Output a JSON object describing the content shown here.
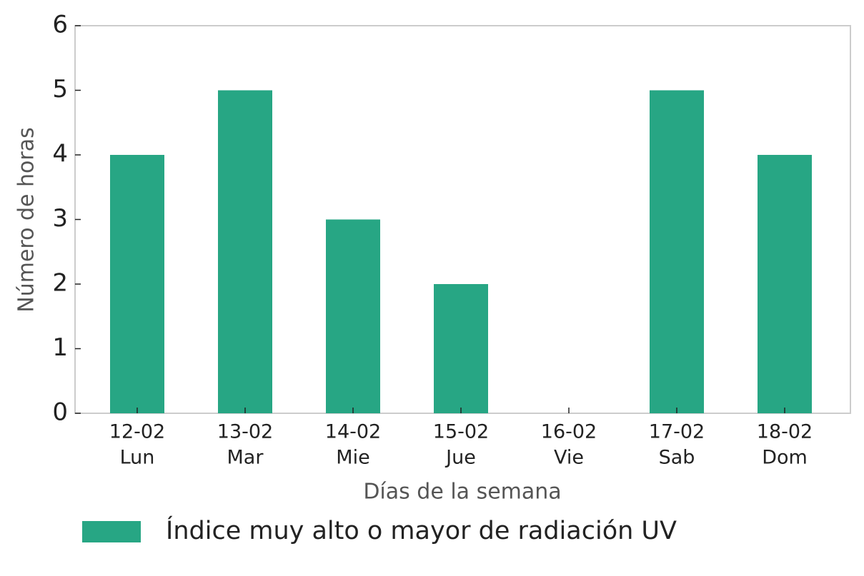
{
  "chart_data": {
    "type": "bar",
    "categories": [
      [
        "12-02",
        "Lun"
      ],
      [
        "13-02",
        "Mar"
      ],
      [
        "14-02",
        "Mie"
      ],
      [
        "15-02",
        "Jue"
      ],
      [
        "16-02",
        "Vie"
      ],
      [
        "17-02",
        "Sab"
      ],
      [
        "18-02",
        "Dom"
      ]
    ],
    "series": [
      {
        "name": "Índice muy alto o mayor de radiación UV",
        "color": "#27a684",
        "values": [
          4,
          5,
          3,
          2,
          0,
          5,
          4
        ]
      }
    ],
    "xlabel": "Días de la semana",
    "ylabel": "Número de horas",
    "ylim": [
      0,
      6
    ],
    "yticks": [
      0,
      1,
      2,
      3,
      4,
      5,
      6
    ],
    "grid": false,
    "legend": "bottom"
  }
}
